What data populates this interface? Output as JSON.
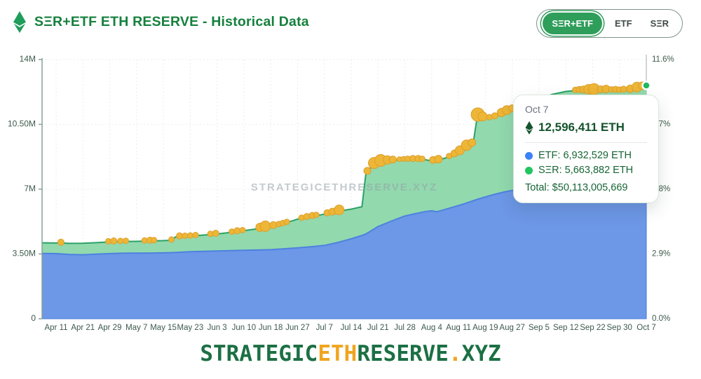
{
  "header": {
    "title": "SΞR+ETF ETH RESERVE - Historical Data",
    "buttons": [
      {
        "label": "SΞR+ETF",
        "active": true
      },
      {
        "label": "ETF",
        "active": false
      },
      {
        "label": "SΞR",
        "active": false
      }
    ]
  },
  "watermark": "STRATEGICETHRESERVE.XYZ",
  "tooltip": {
    "date": "Oct 7",
    "total_eth": "12,596,411 ETH",
    "etf_line": "ETF: 6,932,529 ETH",
    "ser_line": "SΞR: 5,663,882 ETH",
    "total_usd": "Total: $50,113,005,669"
  },
  "footer": {
    "parts": [
      {
        "text": "STRATEGIC",
        "color": "#1c7044"
      },
      {
        "text": "ETH",
        "color": "#f0a51f"
      },
      {
        "text": "RESERVE",
        "color": "#1c7044"
      },
      {
        "text": ".",
        "color": "#f0a51f"
      },
      {
        "text": "XYZ",
        "color": "#1c7044"
      }
    ]
  },
  "theme": {
    "title_green": "#15803d",
    "etf_fill": "#6d97e7",
    "etf_line": "#4d82de",
    "ser_fill": "#92d9ae",
    "ser_line": "#2aa166",
    "marker_fill": "#edb637",
    "marker_stroke": "#dd9f2b",
    "axis": "#8aa096",
    "grid": "#e9edef",
    "label": "#3d5a4c",
    "crosshair": "#b0b7bd",
    "end_dot_green": "#22b860",
    "end_dot_blue": "#4f7ff0"
  },
  "chart_data": {
    "type": "area",
    "stacked": true,
    "title": "SΞR+ETF ETH RESERVE - Historical Data",
    "values_unit": "millions of ETH",
    "x_tick_labels": [
      "Apr 11",
      "Apr 21",
      "Apr 29",
      "May 7",
      "May 15",
      "May 23",
      "Jun 3",
      "Jun 10",
      "Jun 18",
      "Jun 27",
      "Jul 7",
      "Jul 14",
      "Jul 21",
      "Jul 28",
      "Aug 4",
      "Aug 11",
      "Aug 19",
      "Aug 27",
      "Sep 5",
      "Sep 12",
      "Sep 22",
      "Sep 30",
      "Oct 7"
    ],
    "y_left_ticks": [
      {
        "label": "14M",
        "v": 14
      },
      {
        "label": "10.50M",
        "v": 10.5
      },
      {
        "label": "7M",
        "v": 7
      },
      {
        "label": "3.50M",
        "v": 3.5
      },
      {
        "label": "0",
        "v": 0
      }
    ],
    "y_right_ticks": [
      {
        "label": "11.6%",
        "v": 14
      },
      {
        "label": "8.7%",
        "v": 10.5
      },
      {
        "label": "5.8%",
        "v": 7
      },
      {
        "label": "2.9%",
        "v": 3.5
      },
      {
        "label": "0.0%",
        "v": 0
      }
    ],
    "ylim": [
      0,
      14
    ],
    "grid": "dotted",
    "series": [
      {
        "name": "ETF",
        "color": "#6d97e7",
        "values": [
          3.52,
          3.46,
          3.52,
          3.55,
          3.56,
          3.62,
          3.66,
          3.7,
          3.73,
          3.83,
          3.96,
          4.32,
          4.98,
          5.55,
          5.83,
          6.12,
          6.58,
          6.93,
          6.86,
          6.9,
          6.88,
          6.9,
          6.93
        ]
      },
      {
        "name": "SΞR",
        "color": "#92d9ae",
        "values": [
          0.57,
          0.62,
          0.63,
          0.63,
          0.66,
          0.84,
          0.92,
          1.06,
          1.24,
          1.55,
          1.69,
          1.6,
          3.47,
          3.05,
          2.69,
          2.86,
          4.24,
          4.39,
          5.04,
          5.38,
          5.44,
          5.44,
          5.66
        ]
      }
    ],
    "total_at_ticks": [
      4.09,
      4.08,
      4.15,
      4.18,
      4.22,
      4.46,
      4.58,
      4.76,
      4.97,
      5.38,
      5.65,
      5.92,
      8.45,
      8.6,
      8.52,
      8.98,
      10.82,
      11.32,
      11.9,
      12.28,
      12.32,
      12.34,
      12.6
    ],
    "hover": {
      "date": "Oct 7",
      "tick_index": 22,
      "etf": 6932529,
      "ser": 5663882,
      "total_eth": 12596411,
      "total_usd": 50113005669
    },
    "render_points": [
      [
        -0.52,
        3.53,
        4.1
      ],
      [
        0,
        3.52,
        4.09
      ],
      [
        0.2,
        3.5,
        4.09
      ],
      [
        0.5,
        3.47,
        4.07
      ],
      [
        1,
        3.46,
        4.08
      ],
      [
        1.5,
        3.49,
        4.11
      ],
      [
        2,
        3.52,
        4.15
      ],
      [
        2.5,
        3.54,
        4.17
      ],
      [
        3,
        3.55,
        4.18
      ],
      [
        3.5,
        3.55,
        4.2
      ],
      [
        4,
        3.56,
        4.22
      ],
      [
        4.3,
        3.57,
        4.24
      ],
      [
        4.45,
        3.58,
        4.42
      ],
      [
        5,
        3.62,
        4.46
      ],
      [
        5.5,
        3.64,
        4.52
      ],
      [
        6,
        3.66,
        4.58
      ],
      [
        6.5,
        3.68,
        4.66
      ],
      [
        7,
        3.7,
        4.76
      ],
      [
        7.5,
        3.71,
        4.86
      ],
      [
        8,
        3.73,
        4.97
      ],
      [
        8.5,
        3.78,
        5.15
      ],
      [
        9,
        3.83,
        5.38
      ],
      [
        9.5,
        3.89,
        5.52
      ],
      [
        10,
        3.96,
        5.65
      ],
      [
        10.5,
        4.12,
        5.8
      ],
      [
        11,
        4.32,
        5.92
      ],
      [
        11.4,
        4.5,
        6.05
      ],
      [
        11.55,
        4.58,
        7.85
      ],
      [
        11.8,
        4.8,
        8.3
      ],
      [
        12,
        4.98,
        8.45
      ],
      [
        12.5,
        5.28,
        8.55
      ],
      [
        13,
        5.55,
        8.6
      ],
      [
        13.4,
        5.68,
        8.62
      ],
      [
        13.8,
        5.8,
        8.58
      ],
      [
        14,
        5.83,
        8.52
      ],
      [
        14.2,
        5.78,
        8.55
      ],
      [
        14.6,
        5.95,
        8.72
      ],
      [
        15,
        6.12,
        8.98
      ],
      [
        15.3,
        6.25,
        9.3
      ],
      [
        15.55,
        6.38,
        9.5
      ],
      [
        15.7,
        6.45,
        10.95
      ],
      [
        16,
        6.58,
        10.82
      ],
      [
        16.3,
        6.7,
        10.88
      ],
      [
        16.7,
        6.85,
        11.15
      ],
      [
        17,
        6.93,
        11.32
      ],
      [
        17.5,
        6.9,
        11.6
      ],
      [
        18,
        6.86,
        11.9
      ],
      [
        18.5,
        6.88,
        12.12
      ],
      [
        19,
        6.9,
        12.28
      ],
      [
        19.5,
        6.89,
        12.34
      ],
      [
        20,
        6.88,
        12.32
      ],
      [
        20.5,
        6.89,
        12.36
      ],
      [
        21,
        6.9,
        12.34
      ],
      [
        21.5,
        6.9,
        12.38
      ],
      [
        22,
        6.93,
        12.6
      ]
    ],
    "markers": [
      [
        0.18,
        4.5
      ],
      [
        1.95,
        4
      ],
      [
        2.15,
        4.5
      ],
      [
        2.4,
        4
      ],
      [
        2.6,
        4
      ],
      [
        3.3,
        4
      ],
      [
        3.5,
        4.5
      ],
      [
        3.65,
        4
      ],
      [
        4.3,
        4
      ],
      [
        4.6,
        4.5
      ],
      [
        4.8,
        4
      ],
      [
        5.0,
        4
      ],
      [
        5.2,
        4
      ],
      [
        5.75,
        4
      ],
      [
        5.95,
        4.5
      ],
      [
        6.55,
        4
      ],
      [
        6.75,
        4.5
      ],
      [
        6.95,
        4
      ],
      [
        7.6,
        6
      ],
      [
        7.8,
        7.5
      ],
      [
        8.1,
        5
      ],
      [
        8.3,
        4
      ],
      [
        8.45,
        4
      ],
      [
        8.6,
        4
      ],
      [
        9.15,
        4
      ],
      [
        9.35,
        4.5
      ],
      [
        9.55,
        4.5
      ],
      [
        9.7,
        4
      ],
      [
        10.1,
        4.5
      ],
      [
        10.3,
        5
      ],
      [
        10.55,
        7
      ],
      [
        11.6,
        5
      ],
      [
        11.85,
        8
      ],
      [
        12.1,
        8.5
      ],
      [
        12.35,
        6
      ],
      [
        12.55,
        5
      ],
      [
        12.8,
        3.5
      ],
      [
        12.95,
        3.5
      ],
      [
        13.1,
        4
      ],
      [
        13.3,
        4.5
      ],
      [
        13.5,
        4.5
      ],
      [
        13.65,
        4
      ],
      [
        14.05,
        5
      ],
      [
        14.25,
        5.5
      ],
      [
        14.65,
        4
      ],
      [
        14.85,
        5
      ],
      [
        15.05,
        6.5
      ],
      [
        15.3,
        7.5
      ],
      [
        15.5,
        5.5
      ],
      [
        15.72,
        9.5
      ],
      [
        15.9,
        6.5
      ],
      [
        16.15,
        4
      ],
      [
        16.35,
        4.5
      ],
      [
        16.6,
        6
      ],
      [
        16.8,
        6.5
      ],
      [
        17.0,
        5
      ],
      [
        17.15,
        4.5
      ],
      [
        19.35,
        4
      ],
      [
        19.5,
        4.5
      ],
      [
        19.65,
        5
      ],
      [
        19.85,
        7
      ],
      [
        20.05,
        8
      ],
      [
        20.3,
        5
      ],
      [
        20.5,
        5.5
      ],
      [
        20.7,
        4
      ],
      [
        20.85,
        4.5
      ],
      [
        21.0,
        4
      ],
      [
        21.15,
        4.5
      ],
      [
        21.4,
        5.5
      ],
      [
        21.65,
        7
      ],
      [
        21.85,
        5.5
      ],
      [
        21.98,
        4.5
      ]
    ]
  }
}
